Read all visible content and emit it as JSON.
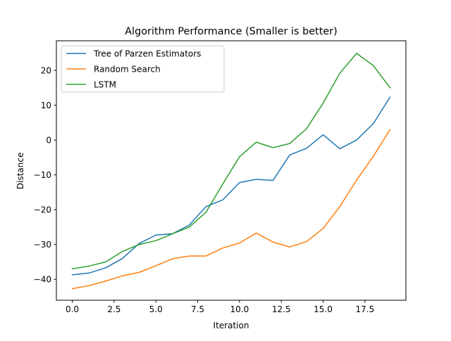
{
  "chart_data": {
    "type": "line",
    "title": "Algorithm Performance (Smaller is better)",
    "xlabel": "Iteration",
    "ylabel": "Distance",
    "xlim": [
      -0.95,
      19.95
    ],
    "ylim": [
      -46.0,
      28.5
    ],
    "xticks": [
      0.0,
      2.5,
      5.0,
      7.5,
      10.0,
      12.5,
      15.0,
      17.5
    ],
    "xtick_labels": [
      "0.0",
      "2.5",
      "5.0",
      "7.5",
      "10.0",
      "12.5",
      "15.0",
      "17.5"
    ],
    "yticks": [
      -40,
      -30,
      -20,
      -10,
      0,
      10,
      20
    ],
    "ytick_labels": [
      "−40",
      "−30",
      "−20",
      "−10",
      "0",
      "10",
      "20"
    ],
    "grid": false,
    "legend_position": "upper-left",
    "x": [
      0,
      1,
      2,
      3,
      4,
      5,
      6,
      7,
      8,
      9,
      10,
      11,
      12,
      13,
      14,
      15,
      16,
      17,
      18,
      19
    ],
    "series": [
      {
        "name": "Tree of Parzen Estimators",
        "color": "#1f77b4",
        "values": [
          -38.7,
          -38.2,
          -36.7,
          -34.0,
          -29.7,
          -27.3,
          -26.9,
          -24.4,
          -19.1,
          -17.2,
          -12.2,
          -11.3,
          -11.6,
          -4.3,
          -2.4,
          1.5,
          -2.5,
          0.0,
          4.7,
          12.3
        ]
      },
      {
        "name": "Random Search",
        "color": "#ff7f0e",
        "values": [
          -42.7,
          -41.8,
          -40.5,
          -39.0,
          -38.0,
          -36.1,
          -34.1,
          -33.3,
          -33.3,
          -31.0,
          -29.6,
          -26.7,
          -29.3,
          -30.7,
          -29.2,
          -25.4,
          -19.1,
          -11.5,
          -4.7,
          3.0
        ]
      },
      {
        "name": "LSTM",
        "color": "#2ca02c",
        "values": [
          -37.0,
          -36.2,
          -35.0,
          -32.0,
          -30.0,
          -28.9,
          -26.9,
          -25.0,
          -20.7,
          -12.6,
          -4.8,
          -0.6,
          -2.2,
          -1.0,
          3.2,
          10.6,
          19.2,
          24.9,
          21.4,
          15.0
        ]
      }
    ]
  }
}
